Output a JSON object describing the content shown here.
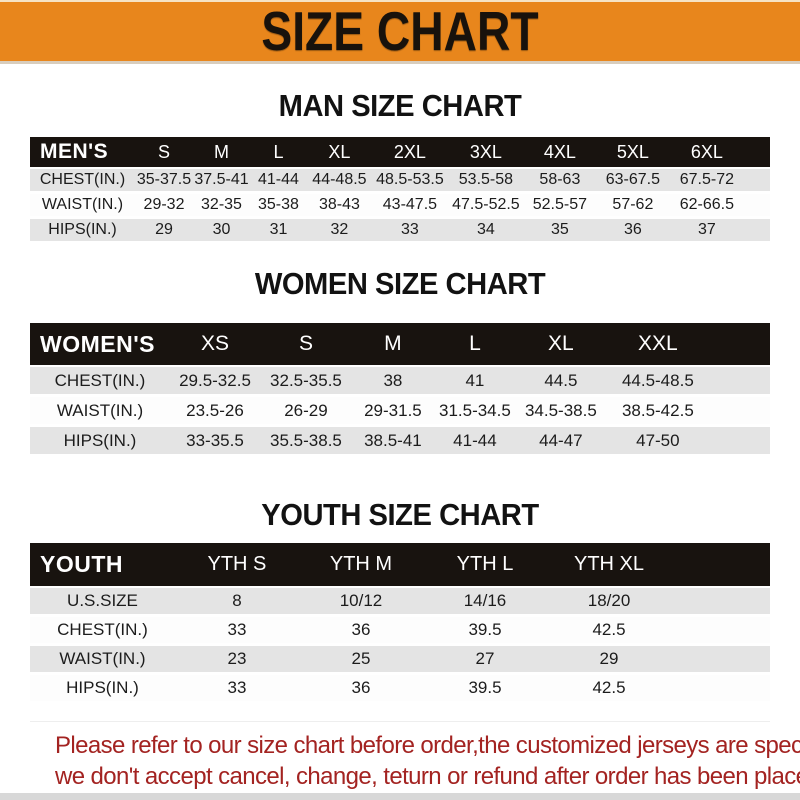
{
  "banner": {
    "title": "SIZE CHART"
  },
  "colors": {
    "accent_orange": "#e8861c",
    "table_header_black": "#18130f",
    "stripe_gray": "#e4e4e4",
    "footer_red": "#a32321"
  },
  "sections": [
    {
      "id": "men",
      "heading": "MAN SIZE CHART",
      "header": [
        "MEN'S",
        "S",
        "M",
        "L",
        "XL",
        "2XL",
        "3XL",
        "4XL",
        "5XL",
        "6XL"
      ],
      "rows": [
        [
          "CHEST(IN.)",
          "35-37.5",
          "37.5-41",
          "41-44",
          "44-48.5",
          "48.5-53.5",
          "53.5-58",
          "58-63",
          "63-67.5",
          "67.5-72"
        ],
        [
          "WAIST(IN.)",
          "29-32",
          "32-35",
          "35-38",
          "38-43",
          "43-47.5",
          "47.5-52.5",
          "52.5-57",
          "57-62",
          "62-66.5"
        ],
        [
          "HIPS(IN.)",
          "29",
          "30",
          "31",
          "32",
          "33",
          "34",
          "35",
          "36",
          "37"
        ]
      ]
    },
    {
      "id": "women",
      "heading": "WOMEN SIZE CHART",
      "header": [
        "WOMEN'S",
        "XS",
        "S",
        "M",
        "L",
        "XL",
        "XXL"
      ],
      "rows": [
        [
          "CHEST(IN.)",
          "29.5-32.5",
          "32.5-35.5",
          "38",
          "41",
          "44.5",
          "44.5-48.5"
        ],
        [
          "WAIST(IN.)",
          "23.5-26",
          "26-29",
          "29-31.5",
          "31.5-34.5",
          "34.5-38.5",
          "38.5-42.5"
        ],
        [
          "HIPS(IN.)",
          "33-35.5",
          "35.5-38.5",
          "38.5-41",
          "41-44",
          "44-47",
          "47-50"
        ]
      ]
    },
    {
      "id": "youth",
      "heading": "YOUTH SIZE CHART",
      "header": [
        "YOUTH",
        "YTH S",
        "YTH M",
        "YTH L",
        "YTH XL"
      ],
      "rows": [
        [
          "U.S.SIZE",
          "8",
          "10/12",
          "14/16",
          "18/20"
        ],
        [
          "CHEST(IN.)",
          "33",
          "36",
          "39.5",
          "42.5"
        ],
        [
          "WAIST(IN.)",
          "23",
          "25",
          "27",
          "29"
        ],
        [
          "HIPS(IN.)",
          "33",
          "36",
          "39.5",
          "42.5"
        ]
      ]
    }
  ],
  "footer": {
    "line1": "Please refer to our size chart before order,the customized jerseys are special products,",
    "line2": "we don't accept cancel, change, teturn or refund after order has been placed!"
  }
}
